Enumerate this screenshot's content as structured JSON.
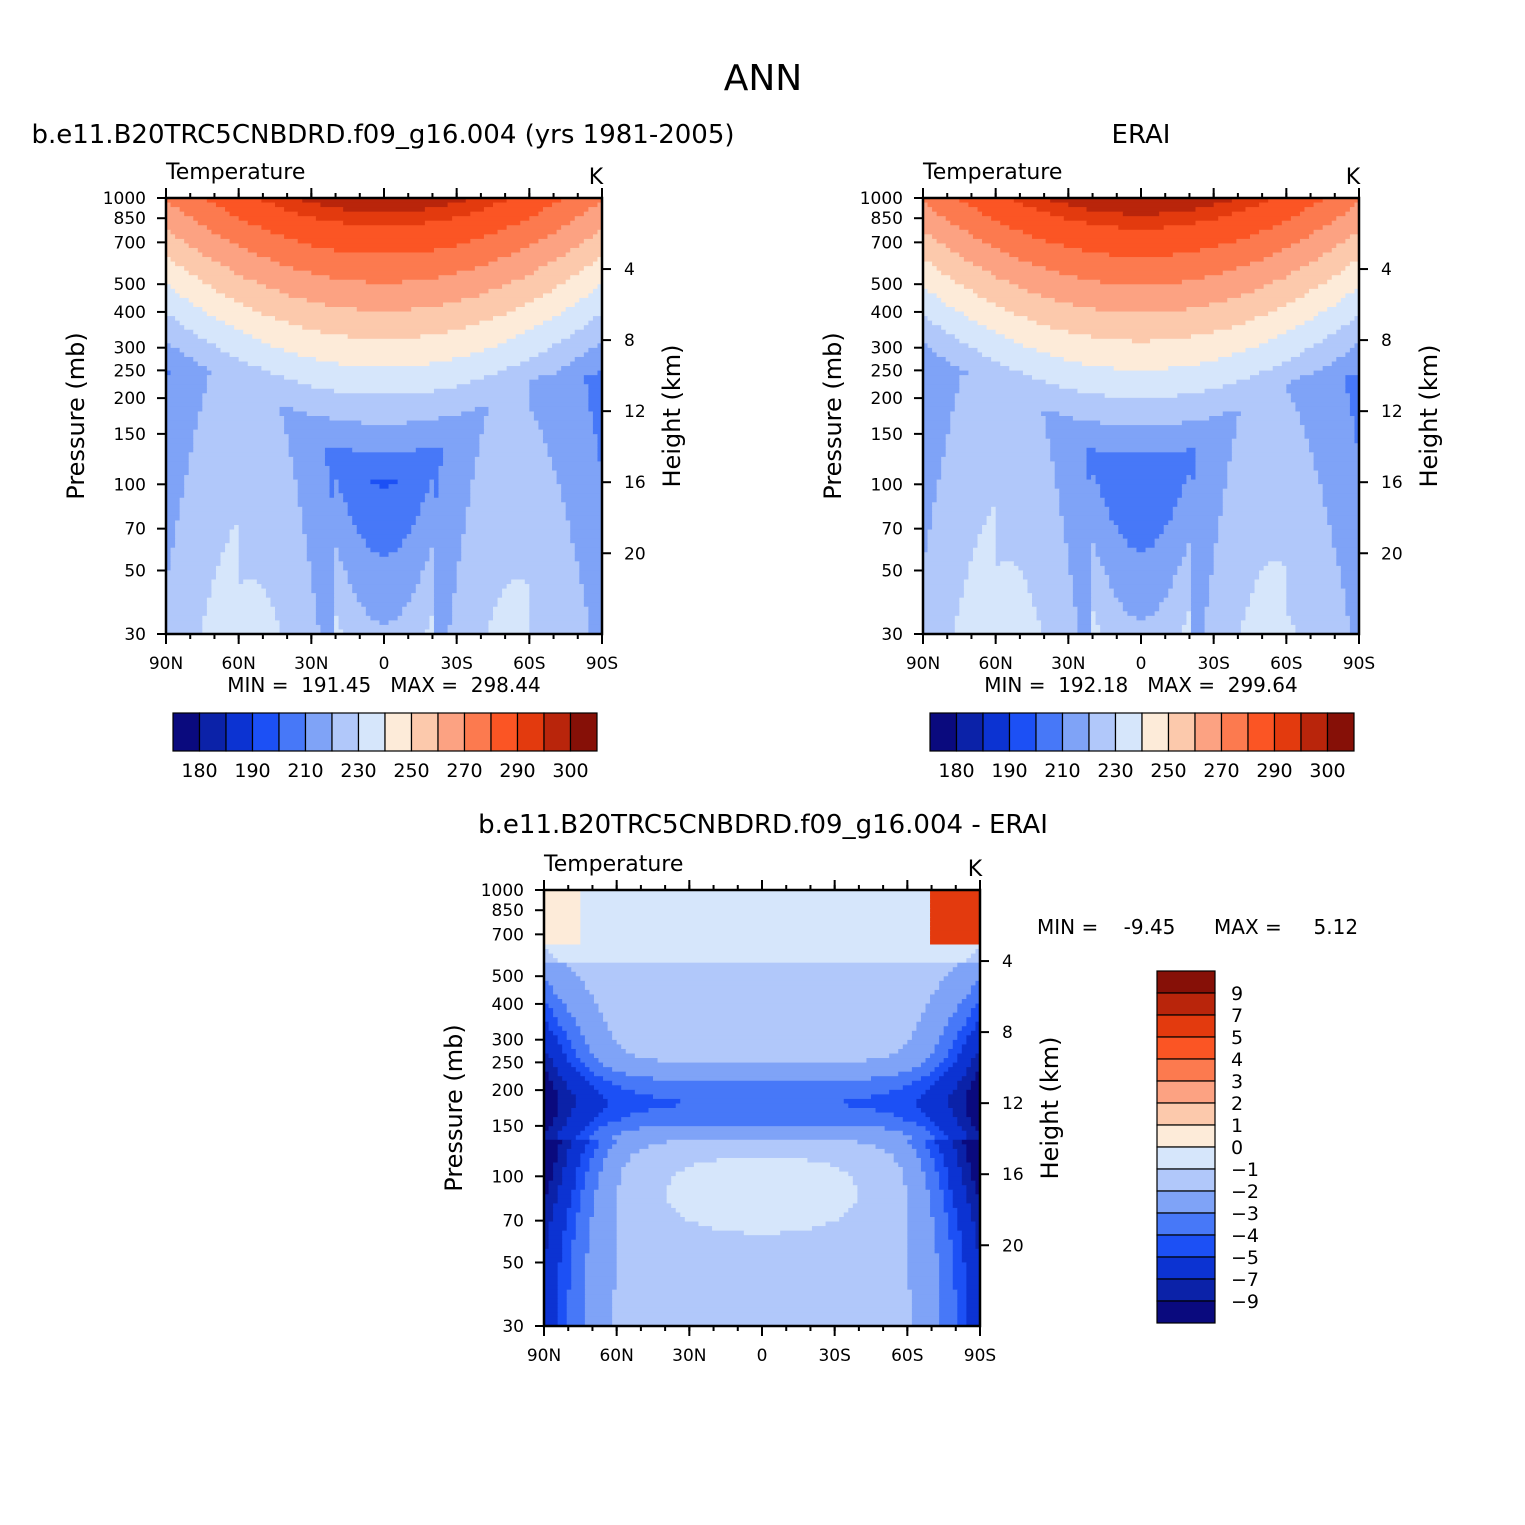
{
  "title": "ANN",
  "colors": {
    "model_scale": [
      "#0a0a7e",
      "#0b22a8",
      "#0c33d2",
      "#1c50f5",
      "#4778f8",
      "#7fa3f7",
      "#b1c8fa",
      "#d6e6fb",
      "#fdebd9",
      "#fcc9ac",
      "#fca282",
      "#fc7a4f",
      "#fb5524",
      "#e33a0e",
      "#b9250b",
      "#861007"
    ],
    "diff_scale": [
      "#861007",
      "#b9250b",
      "#e33a0e",
      "#fb5524",
      "#fc7a4f",
      "#fca282",
      "#fcc9ac",
      "#fdebd9",
      "#d6e6fb",
      "#b1c8fa",
      "#7fa3f7",
      "#4778f8",
      "#1c50f5",
      "#0c33d2",
      "#0b22a8",
      "#0a0a7e"
    ]
  },
  "panels": [
    {
      "header": "b.e11.B20TRC5CNBDRD.f09_g16.004 (yrs 1981-2005)",
      "subtitle": "Temperature",
      "units": "K",
      "ylabel": "Pressure (mb)",
      "ylabel_right": "Height (km)",
      "stats": "MIN =  191.45   MAX =  298.44"
    },
    {
      "header": "ERAI",
      "subtitle": "Temperature",
      "units": "K",
      "ylabel": "Pressure (mb)",
      "ylabel_right": "Height (km)",
      "stats": "MIN =  192.18   MAX =  299.64"
    },
    {
      "header": "b.e11.B20TRC5CNBDRD.f09_g16.004 - ERAI",
      "subtitle": "Temperature",
      "units": "K",
      "ylabel": "Pressure (mb)",
      "ylabel_right": "Height (km)",
      "stats_min": "MIN =    -9.45",
      "stats_max": "MAX =     5.12"
    }
  ],
  "chart_data": [
    {
      "type": "heatmap",
      "subtype": "latitude-pressure contour (filled)",
      "title": "b.e11.B20TRC5CNBDRD.f09_g16.004 (yrs 1981-2005)",
      "variable": "Temperature",
      "units": "K",
      "xlabel": "",
      "ylabel": "Pressure (mb)",
      "ylabel_right": "Height (km)",
      "x_ticks": [
        "90N",
        "60N",
        "30N",
        "0",
        "30S",
        "60S",
        "90S"
      ],
      "x_range": [
        90,
        -90
      ],
      "y_ticks": [
        30,
        50,
        70,
        100,
        150,
        200,
        250,
        300,
        400,
        500,
        700,
        850,
        1000
      ],
      "y_range": [
        1000,
        30
      ],
      "y_scale": "log",
      "height_ticks_km": [
        4,
        8,
        12,
        16,
        20
      ],
      "min": 191.45,
      "max": 298.44,
      "colorbar_labels": [
        "180",
        "190",
        "210",
        "230",
        "250",
        "270",
        "290",
        "300"
      ],
      "levels": [
        180,
        185,
        190,
        200,
        210,
        220,
        230,
        240,
        250,
        260,
        270,
        280,
        290,
        295,
        300
      ],
      "legend": "bottom"
    },
    {
      "type": "heatmap",
      "subtype": "latitude-pressure contour (filled)",
      "title": "ERAI",
      "variable": "Temperature",
      "units": "K",
      "xlabel": "",
      "ylabel": "Pressure (mb)",
      "ylabel_right": "Height (km)",
      "x_ticks": [
        "90N",
        "60N",
        "30N",
        "0",
        "30S",
        "60S",
        "90S"
      ],
      "x_range": [
        90,
        -90
      ],
      "y_ticks": [
        30,
        50,
        70,
        100,
        150,
        200,
        250,
        300,
        400,
        500,
        700,
        850,
        1000
      ],
      "y_range": [
        1000,
        30
      ],
      "y_scale": "log",
      "height_ticks_km": [
        4,
        8,
        12,
        16,
        20
      ],
      "min": 192.18,
      "max": 299.64,
      "colorbar_labels": [
        "180",
        "190",
        "210",
        "230",
        "250",
        "270",
        "290",
        "300"
      ],
      "levels": [
        180,
        185,
        190,
        200,
        210,
        220,
        230,
        240,
        250,
        260,
        270,
        280,
        290,
        295,
        300
      ],
      "legend": "bottom"
    },
    {
      "type": "heatmap",
      "subtype": "latitude-pressure contour (filled), difference",
      "title": "b.e11.B20TRC5CNBDRD.f09_g16.004 - ERAI",
      "variable": "Temperature",
      "units": "K",
      "xlabel": "",
      "ylabel": "Pressure (mb)",
      "ylabel_right": "Height (km)",
      "x_ticks": [
        "90N",
        "60N",
        "30N",
        "0",
        "30S",
        "60S",
        "90S"
      ],
      "x_range": [
        90,
        -90
      ],
      "y_ticks": [
        30,
        50,
        70,
        100,
        150,
        200,
        250,
        300,
        400,
        500,
        700,
        850,
        1000
      ],
      "y_range": [
        1000,
        30
      ],
      "y_scale": "log",
      "height_ticks_km": [
        4,
        8,
        12,
        16,
        20
      ],
      "min": -9.45,
      "max": 5.12,
      "colorbar_labels": [
        "9",
        "7",
        "5",
        "4",
        "3",
        "2",
        "1",
        "0",
        "-1",
        "-2",
        "-3",
        "-4",
        "-5",
        "-7",
        "-9"
      ],
      "levels": [
        9,
        7,
        5,
        4,
        3,
        2,
        1,
        0,
        -1,
        -2,
        -3,
        -4,
        -5,
        -7,
        -9
      ],
      "legend": "right"
    }
  ]
}
